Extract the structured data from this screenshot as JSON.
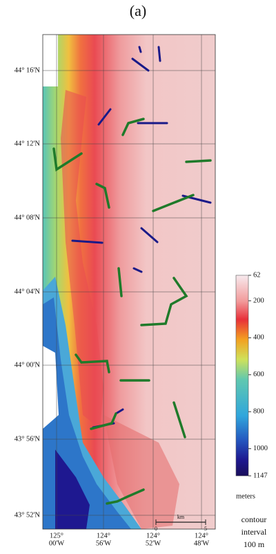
{
  "title": "(a)",
  "latitude_labels": [
    "44° 16'N",
    "44° 12'N",
    "44° 08'N",
    "44° 04'N",
    "44° 00'N",
    "43° 56'N",
    "43° 52'N"
  ],
  "longitude_labels": [
    [
      "125°",
      "00'W"
    ],
    [
      "124°",
      "56'W"
    ],
    [
      "124°",
      "52'W"
    ],
    [
      "124°",
      "48'W"
    ]
  ],
  "scale_bar": {
    "label": "km",
    "start": 0,
    "end": 5
  },
  "colorbar": {
    "lim": [
      62,
      1147
    ],
    "ticks": [
      62,
      200,
      400,
      600,
      800,
      1000,
      1147
    ],
    "label": "meters"
  },
  "contour_note": [
    "contour",
    "interval",
    "100 m"
  ]
}
